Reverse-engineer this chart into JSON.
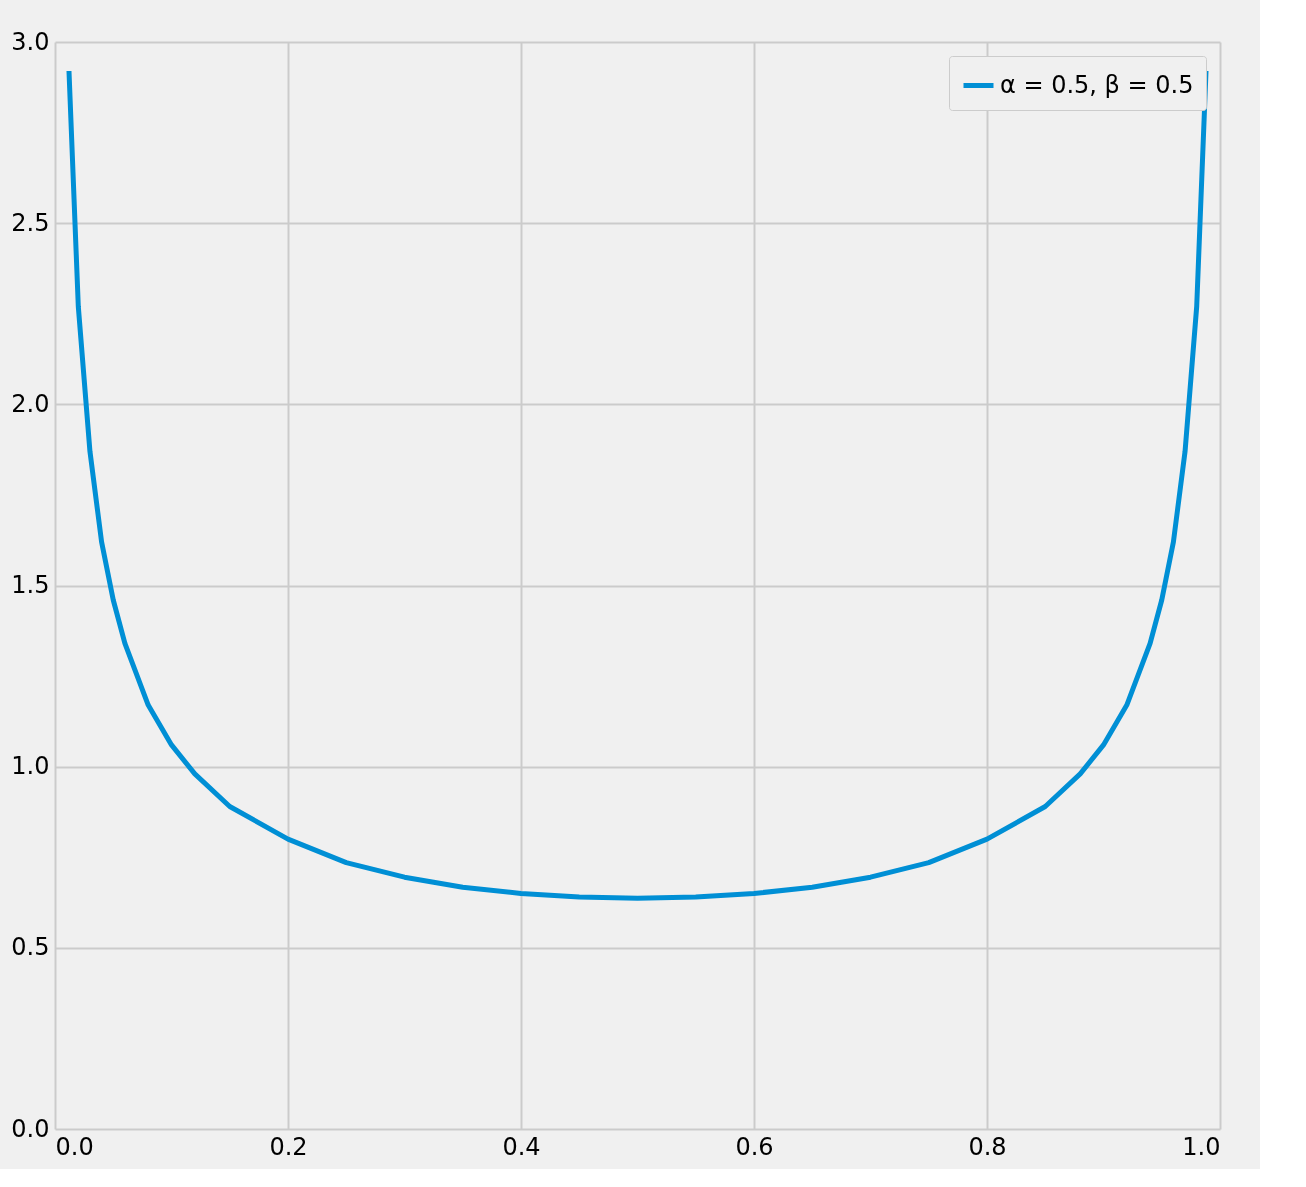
{
  "chart_data": {
    "type": "line",
    "x": [
      0.012,
      0.02,
      0.03,
      0.04,
      0.05,
      0.06,
      0.08,
      0.1,
      0.12,
      0.15,
      0.2,
      0.25,
      0.3,
      0.35,
      0.4,
      0.45,
      0.5,
      0.55,
      0.6,
      0.65,
      0.7,
      0.75,
      0.8,
      0.85,
      0.88,
      0.9,
      0.92,
      0.94,
      0.95,
      0.96,
      0.97,
      0.98,
      0.988
    ],
    "series": [
      {
        "name": "α = 0.5, β = 0.5",
        "color": "#008fd5",
        "values": [
          2.92,
          2.27,
          1.87,
          1.62,
          1.46,
          1.34,
          1.17,
          1.06,
          0.98,
          0.89,
          0.8,
          0.735,
          0.695,
          0.667,
          0.65,
          0.64,
          0.637,
          0.64,
          0.65,
          0.667,
          0.695,
          0.735,
          0.8,
          0.89,
          0.98,
          1.06,
          1.17,
          1.34,
          1.46,
          1.62,
          1.87,
          2.27,
          2.92
        ]
      }
    ],
    "xlim": [
      0,
      1
    ],
    "ylim": [
      0,
      3
    ],
    "xticks": [
      {
        "value": 0,
        "label": "0.0"
      },
      0.2,
      0.4,
      0.6,
      0.8,
      {
        "value": 1,
        "label": "1.0"
      }
    ],
    "yticks": [
      {
        "value": 0,
        "label": "0.0"
      },
      0.5,
      {
        "value": 1,
        "label": "1.0"
      },
      1.5,
      {
        "value": 2,
        "label": "2.0"
      },
      2.5,
      {
        "value": 3,
        "label": "3.0"
      }
    ],
    "grid": true,
    "legend": "top right",
    "marker": "none",
    "line_style": "solid"
  }
}
